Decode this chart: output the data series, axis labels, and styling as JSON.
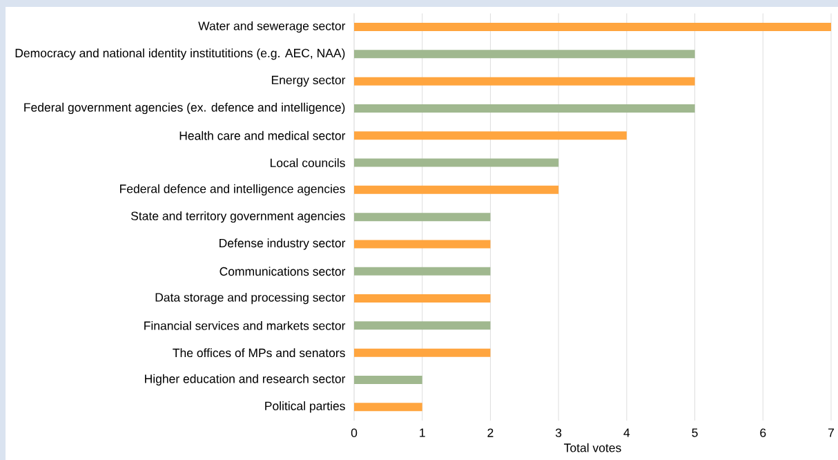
{
  "chart_data": {
    "type": "bar",
    "orientation": "horizontal",
    "categories": [
      "Water and sewerage sector",
      "Democracy and national identity institutitions (e.g. AEC, NAA)",
      "Energy sector",
      "Federal government agencies (ex. defence and intelligence)",
      "Health care and medical sector",
      "Local councils",
      "Federal defence and intelligence agencies",
      "State and territory government agencies",
      "Defense industry sector",
      "Communications sector",
      "Data storage and processing sector",
      "Financial services and markets sector",
      "The offices of MPs and senators",
      "Higher education and research sector",
      "Political parties"
    ],
    "values": [
      7,
      5,
      5,
      5,
      4,
      3,
      3,
      2,
      2,
      2,
      2,
      2,
      2,
      1,
      1
    ],
    "colors": [
      "#ffa53f",
      "#a0b88f",
      "#ffa53f",
      "#a0b88f",
      "#ffa53f",
      "#a0b88f",
      "#ffa53f",
      "#a0b88f",
      "#ffa53f",
      "#a0b88f",
      "#ffa53f",
      "#a0b88f",
      "#ffa53f",
      "#a0b88f",
      "#ffa53f"
    ],
    "xlabel": "Total votes",
    "xlim": [
      0,
      7
    ],
    "xticks": [
      0,
      1,
      2,
      3,
      4,
      5,
      6,
      7
    ],
    "grid": "x"
  }
}
